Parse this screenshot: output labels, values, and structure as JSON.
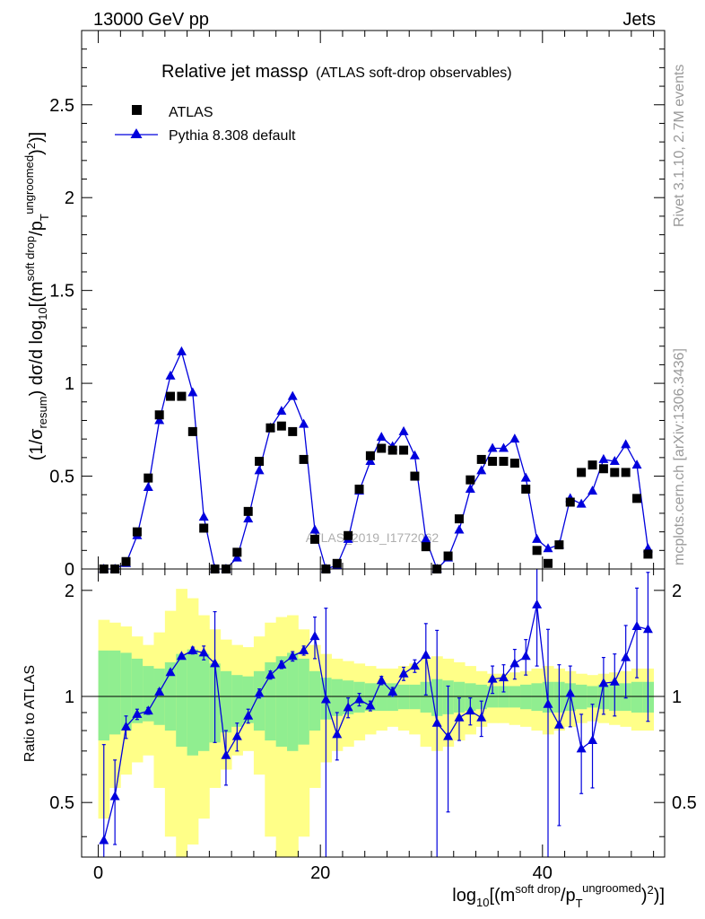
{
  "header": {
    "left": "13000 GeV pp",
    "right": "Jets"
  },
  "side_text": {
    "top": "Rivet 3.1.10,  2.7M events",
    "bottom": "mcplots.cern.ch [arXiv:1306.3436]"
  },
  "watermark": "ATLAS_2019_I1772062",
  "colors": {
    "data": "#000000",
    "mc": "#0000dd",
    "band_inner": "#90ee90",
    "band_outer": "#ffff88"
  },
  "chart_data": [
    {
      "type": "scatter",
      "title_main": "Relative jet massρ",
      "title_sub": "(ATLAS soft-drop observables)",
      "ylabel": "(1/σresum) dσ/d log10[(msoft drop/pTungroomed)2)]",
      "xlim": [
        -1.5,
        51
      ],
      "ylim": [
        0,
        2.9
      ],
      "yticks": [
        "0",
        "0.5",
        "1",
        "1.5",
        "2",
        "2.5"
      ],
      "legend_position": "top-left",
      "series": [
        {
          "name": "ATLAS",
          "marker": "square",
          "x": [
            0.5,
            1.5,
            2.5,
            3.5,
            4.5,
            5.5,
            6.5,
            7.5,
            8.5,
            9.5,
            10.5,
            11.5,
            12.5,
            13.5,
            14.5,
            15.5,
            16.5,
            17.5,
            18.5,
            19.5,
            20.5,
            21.5,
            22.5,
            23.5,
            24.5,
            25.5,
            26.5,
            27.5,
            28.5,
            29.5,
            30.5,
            31.5,
            32.5,
            33.5,
            34.5,
            35.5,
            36.5,
            37.5,
            38.5,
            39.5,
            40.5,
            41.5,
            42.5,
            43.5,
            44.5,
            45.5,
            46.5,
            47.5,
            48.5,
            49.5
          ],
          "values": [
            0.0,
            0.0,
            0.04,
            0.2,
            0.49,
            0.83,
            0.93,
            0.93,
            0.74,
            0.22,
            0.0,
            0.0,
            0.09,
            0.31,
            0.58,
            0.76,
            0.77,
            0.74,
            0.59,
            0.16,
            0.0,
            0.03,
            0.18,
            0.43,
            0.61,
            0.65,
            0.64,
            0.64,
            0.5,
            0.12,
            0.0,
            0.07,
            0.27,
            0.48,
            0.59,
            0.58,
            0.58,
            0.57,
            0.43,
            0.1,
            0.03,
            0.13,
            0.36,
            0.52,
            0.56,
            0.54,
            0.52,
            0.52,
            0.38,
            0.08
          ]
        },
        {
          "name": "Pythia 8.308 default",
          "marker": "triangle",
          "x": [
            0.5,
            1.5,
            2.5,
            3.5,
            4.5,
            5.5,
            6.5,
            7.5,
            8.5,
            9.5,
            10.5,
            11.5,
            12.5,
            13.5,
            14.5,
            15.5,
            16.5,
            17.5,
            18.5,
            19.5,
            20.5,
            21.5,
            22.5,
            23.5,
            24.5,
            25.5,
            26.5,
            27.5,
            28.5,
            29.5,
            30.5,
            31.5,
            32.5,
            33.5,
            34.5,
            35.5,
            36.5,
            37.5,
            38.5,
            39.5,
            40.5,
            41.5,
            42.5,
            43.5,
            44.5,
            45.5,
            46.5,
            47.5,
            48.5,
            49.5
          ],
          "values": [
            0.0,
            0.0,
            0.03,
            0.18,
            0.44,
            0.8,
            1.04,
            1.17,
            0.95,
            0.28,
            0.0,
            0.0,
            0.06,
            0.27,
            0.53,
            0.76,
            0.85,
            0.93,
            0.78,
            0.21,
            0.0,
            0.02,
            0.16,
            0.42,
            0.58,
            0.71,
            0.66,
            0.74,
            0.61,
            0.16,
            0.0,
            0.06,
            0.21,
            0.43,
            0.53,
            0.65,
            0.65,
            0.7,
            0.49,
            0.16,
            0.11,
            0.13,
            0.38,
            0.35,
            0.42,
            0.59,
            0.58,
            0.67,
            0.56,
            0.11
          ]
        }
      ]
    },
    {
      "type": "line",
      "ylabel": "Ratio to ATLAS",
      "xlabel": "log10[(msoft drop/pTungroomed)2)]",
      "xlim": [
        -1.5,
        51
      ],
      "ylim": [
        0.35,
        2.3
      ],
      "log_y": true,
      "yticks": [
        "0.5",
        "1",
        "2"
      ],
      "xticks": [
        "0",
        "20",
        "40"
      ],
      "series": [
        {
          "name": "Pythia 8.308 default",
          "x": [
            0.5,
            1.5,
            2.5,
            3.5,
            4.5,
            5.5,
            6.5,
            7.5,
            8.5,
            9.5,
            10.5,
            11.5,
            12.5,
            13.5,
            14.5,
            15.5,
            16.5,
            17.5,
            18.5,
            19.5,
            20.5,
            21.5,
            22.5,
            23.5,
            24.5,
            25.5,
            26.5,
            27.5,
            28.5,
            29.5,
            30.5,
            31.5,
            32.5,
            33.5,
            34.5,
            35.5,
            36.5,
            37.5,
            38.5,
            39.5,
            40.5,
            41.5,
            42.5,
            43.5,
            44.5,
            45.5,
            46.5,
            47.5,
            48.5,
            49.5
          ],
          "values": [
            0.39,
            0.52,
            0.82,
            0.89,
            0.91,
            1.03,
            1.17,
            1.3,
            1.35,
            1.33,
            1.24,
            0.68,
            0.77,
            0.88,
            1.02,
            1.15,
            1.23,
            1.3,
            1.35,
            1.48,
            0.98,
            0.78,
            0.93,
            0.98,
            0.94,
            1.11,
            1.03,
            1.16,
            1.22,
            1.31,
            0.84,
            0.77,
            0.87,
            0.91,
            0.87,
            1.12,
            1.13,
            1.24,
            1.3,
            1.82,
            0.95,
            0.83,
            1.02,
            0.71,
            0.75,
            1.09,
            1.1,
            1.29,
            1.58,
            1.55
          ],
          "errors": [
            0.34,
            0.14,
            0.06,
            0.03,
            0.02,
            0.02,
            0.02,
            0.02,
            0.03,
            0.06,
            0.5,
            0.12,
            0.07,
            0.04,
            0.03,
            0.03,
            0.03,
            0.04,
            0.04,
            0.2,
            0.8,
            0.12,
            0.06,
            0.04,
            0.03,
            0.03,
            0.03,
            0.05,
            0.05,
            0.3,
            0.7,
            0.3,
            0.12,
            0.08,
            0.1,
            0.1,
            0.1,
            0.12,
            0.15,
            0.6,
            0.6,
            0.4,
            0.2,
            0.18,
            0.2,
            0.2,
            0.22,
            0.3,
            0.45,
            0.7
          ]
        }
      ],
      "bands": {
        "inner_low": [
          0.75,
          0.78,
          0.8,
          0.84,
          0.85,
          0.83,
          0.8,
          0.72,
          0.68,
          0.7,
          0.74,
          0.79,
          0.82,
          0.84,
          0.8,
          0.75,
          0.72,
          0.7,
          0.73,
          0.8,
          0.86,
          0.88,
          0.89,
          0.9,
          0.91,
          0.91,
          0.91,
          0.92,
          0.92,
          0.9,
          0.88,
          0.89,
          0.9,
          0.91,
          0.92,
          0.93,
          0.93,
          0.93,
          0.92,
          0.91,
          0.9,
          0.9,
          0.91,
          0.92,
          0.93,
          0.92,
          0.91,
          0.91,
          0.9,
          0.9
        ],
        "inner_high": [
          1.35,
          1.35,
          1.33,
          1.28,
          1.22,
          1.2,
          1.25,
          1.32,
          1.36,
          1.32,
          1.24,
          1.18,
          1.15,
          1.14,
          1.18,
          1.25,
          1.3,
          1.33,
          1.28,
          1.18,
          1.13,
          1.12,
          1.11,
          1.1,
          1.09,
          1.09,
          1.09,
          1.08,
          1.08,
          1.1,
          1.12,
          1.11,
          1.1,
          1.09,
          1.08,
          1.07,
          1.07,
          1.07,
          1.08,
          1.09,
          1.1,
          1.1,
          1.09,
          1.08,
          1.07,
          1.08,
          1.09,
          1.09,
          1.1,
          1.1
        ],
        "outer_low": [
          0.45,
          0.55,
          0.6,
          0.65,
          0.68,
          0.55,
          0.4,
          0.32,
          0.38,
          0.45,
          0.55,
          0.62,
          0.68,
          0.7,
          0.6,
          0.4,
          0.3,
          0.3,
          0.4,
          0.55,
          0.65,
          0.7,
          0.72,
          0.75,
          0.78,
          0.8,
          0.82,
          0.8,
          0.78,
          0.72,
          0.7,
          0.72,
          0.75,
          0.78,
          0.82,
          0.84,
          0.84,
          0.83,
          0.82,
          0.8,
          0.78,
          0.8,
          0.82,
          0.84,
          0.85,
          0.84,
          0.83,
          0.82,
          0.8,
          0.8
        ],
        "outer_high": [
          1.65,
          1.62,
          1.58,
          1.48,
          1.4,
          1.52,
          1.75,
          2.02,
          1.9,
          1.7,
          1.55,
          1.45,
          1.4,
          1.38,
          1.48,
          1.62,
          1.68,
          1.7,
          1.55,
          1.4,
          1.32,
          1.28,
          1.26,
          1.24,
          1.22,
          1.2,
          1.2,
          1.22,
          1.24,
          1.28,
          1.3,
          1.28,
          1.25,
          1.22,
          1.18,
          1.16,
          1.16,
          1.17,
          1.18,
          1.2,
          1.22,
          1.2,
          1.18,
          1.16,
          1.15,
          1.16,
          1.17,
          1.18,
          1.2,
          1.2
        ]
      }
    }
  ]
}
